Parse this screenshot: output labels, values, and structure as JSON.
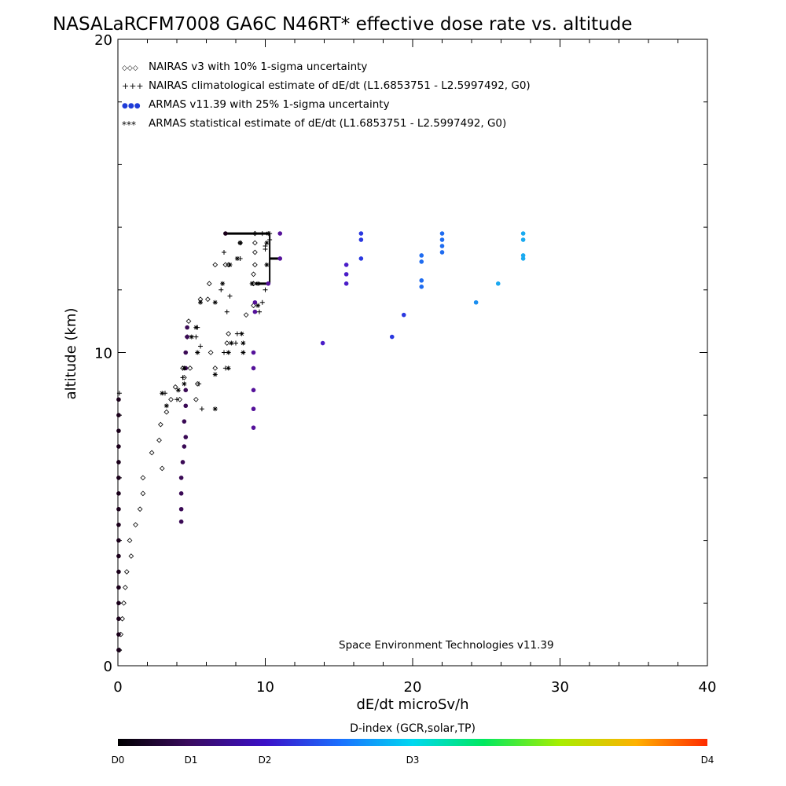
{
  "chart_data": {
    "type": "scatter",
    "title": "NASALaRCFM7008  GA6C N46RT* effective dose rate vs. altitude",
    "xlabel": "dE/dt microSv/h",
    "ylabel": "altitude (km)",
    "xlim": [
      0,
      40
    ],
    "ylim": [
      0,
      20
    ],
    "x_ticks": [
      "0",
      "10",
      "20",
      "30",
      "40"
    ],
    "y_ticks": [
      "0",
      "10",
      "20"
    ],
    "grid": false,
    "legend_position": "top-left",
    "legend": [
      {
        "symbol": "◇◇◇",
        "label": "NAIRAS v3 with 10% 1-sigma uncertainty"
      },
      {
        "symbol": "+++",
        "label": "NAIRAS climatological estimate of dE/dt (L1.6853751 - L2.5997492, G0)"
      },
      {
        "symbol": "●●●",
        "label": "ARMAS v11.39 with 25% 1-sigma uncertainty"
      },
      {
        "symbol": "***",
        "label": "ARMAS statistical estimate of dE/dt (L1.6853751 - L2.5997492, G0)"
      }
    ],
    "annotation": "Space Environment Technologies v11.39",
    "colorbar": {
      "title": "D-index (GCR,solar,TP)",
      "labels": [
        "D0",
        "D1",
        "D2",
        "D3",
        "D4"
      ]
    },
    "series": [
      {
        "name": "NAIRAS v3 with 10% 1-sigma uncertainty",
        "marker": "diamond",
        "points": [
          [
            0.1,
            0.5
          ],
          [
            0.2,
            1.0
          ],
          [
            0.3,
            1.5
          ],
          [
            0.4,
            2.0
          ],
          [
            0.5,
            2.5
          ],
          [
            0.6,
            3.0
          ],
          [
            0.9,
            3.5
          ],
          [
            0.8,
            4.0
          ],
          [
            1.2,
            4.5
          ],
          [
            1.5,
            5.0
          ],
          [
            1.7,
            5.5
          ],
          [
            1.7,
            6.0
          ],
          [
            3.0,
            6.3
          ],
          [
            2.3,
            6.8
          ],
          [
            2.8,
            7.2
          ],
          [
            2.9,
            7.7
          ],
          [
            3.3,
            8.1
          ],
          [
            3.6,
            8.5
          ],
          [
            3.9,
            8.9
          ],
          [
            4.4,
            9.5
          ],
          [
            4.2,
            8.5
          ],
          [
            4.5,
            9.2
          ],
          [
            5.3,
            8.5
          ],
          [
            5.4,
            9.0
          ],
          [
            4.9,
            9.5
          ],
          [
            6.3,
            10.0
          ],
          [
            6.6,
            9.5
          ],
          [
            4.7,
            10.5
          ],
          [
            4.8,
            11.0
          ],
          [
            5.6,
            11.7
          ],
          [
            6.1,
            11.7
          ],
          [
            6.2,
            12.2
          ],
          [
            6.6,
            12.8
          ],
          [
            7.3,
            12.8
          ],
          [
            8.3,
            13.5
          ],
          [
            7.4,
            10.3
          ],
          [
            7.5,
            10.6
          ],
          [
            8.7,
            11.2
          ],
          [
            9.2,
            11.5
          ],
          [
            9.2,
            12.2
          ],
          [
            9.2,
            12.5
          ],
          [
            9.3,
            12.8
          ],
          [
            9.3,
            13.2
          ],
          [
            9.3,
            13.5
          ],
          [
            9.3,
            13.8
          ],
          [
            7.5,
            12.8
          ]
        ]
      },
      {
        "name": "NAIRAS climatological estimate of dE/dt (L1.6853751 - L2.5997492, G0)",
        "marker": "plus",
        "points": [
          [
            0.1,
            8.7
          ],
          [
            3.2,
            8.7
          ],
          [
            4.0,
            8.5
          ],
          [
            4.4,
            9.2
          ],
          [
            5.5,
            9.0
          ],
          [
            5.7,
            8.2
          ],
          [
            7.3,
            9.5
          ],
          [
            7.2,
            10.0
          ],
          [
            8.0,
            10.3
          ],
          [
            8.1,
            10.6
          ],
          [
            5.3,
            10.5
          ],
          [
            5.4,
            10.8
          ],
          [
            5.6,
            10.2
          ],
          [
            7.4,
            11.3
          ],
          [
            7.6,
            11.8
          ],
          [
            9.6,
            11.3
          ],
          [
            9.8,
            11.6
          ],
          [
            7.0,
            12.0
          ],
          [
            8.3,
            13.0
          ],
          [
            7.2,
            13.2
          ],
          [
            10.0,
            12.0
          ],
          [
            10.0,
            13.3
          ],
          [
            10.3,
            13.6
          ],
          [
            10.3,
            13.8
          ],
          [
            9.8,
            13.8
          ],
          [
            10.0,
            13.4
          ]
        ]
      },
      {
        "name": "ARMAS v11.39 with 25% 1-sigma uncertainty",
        "marker": "dot",
        "colored_by": "D-index",
        "points": [
          {
            "x": 0.05,
            "y": 0.5,
            "c": "#1a001a"
          },
          {
            "x": 0.05,
            "y": 1.0,
            "c": "#1a001a"
          },
          {
            "x": 0.05,
            "y": 1.5,
            "c": "#1a001a"
          },
          {
            "x": 0.05,
            "y": 2.0,
            "c": "#1a001a"
          },
          {
            "x": 0.05,
            "y": 2.5,
            "c": "#1a001a"
          },
          {
            "x": 0.05,
            "y": 3.0,
            "c": "#1a001a"
          },
          {
            "x": 0.05,
            "y": 3.5,
            "c": "#1a001a"
          },
          {
            "x": 0.05,
            "y": 4.0,
            "c": "#1a001a"
          },
          {
            "x": 0.05,
            "y": 4.5,
            "c": "#1a001a"
          },
          {
            "x": 0.05,
            "y": 5.0,
            "c": "#1a001a"
          },
          {
            "x": 0.05,
            "y": 5.5,
            "c": "#1a001a"
          },
          {
            "x": 0.05,
            "y": 6.0,
            "c": "#1a001a"
          },
          {
            "x": 0.05,
            "y": 6.5,
            "c": "#1a001a"
          },
          {
            "x": 0.05,
            "y": 7.0,
            "c": "#1a001a"
          },
          {
            "x": 0.05,
            "y": 7.5,
            "c": "#1a001a"
          },
          {
            "x": 0.05,
            "y": 8.0,
            "c": "#1a001a"
          },
          {
            "x": 0.05,
            "y": 8.5,
            "c": "#1a001a"
          },
          {
            "x": 4.3,
            "y": 4.6,
            "c": "#3a0a55"
          },
          {
            "x": 4.3,
            "y": 5.0,
            "c": "#3a0a55"
          },
          {
            "x": 4.3,
            "y": 5.5,
            "c": "#3a0a55"
          },
          {
            "x": 4.3,
            "y": 6.0,
            "c": "#3a0a55"
          },
          {
            "x": 4.4,
            "y": 6.5,
            "c": "#3a0a55"
          },
          {
            "x": 4.5,
            "y": 7.0,
            "c": "#3a0a55"
          },
          {
            "x": 4.6,
            "y": 7.3,
            "c": "#3a0a55"
          },
          {
            "x": 4.5,
            "y": 7.8,
            "c": "#3a0a55"
          },
          {
            "x": 4.6,
            "y": 8.3,
            "c": "#3a0a55"
          },
          {
            "x": 4.6,
            "y": 8.8,
            "c": "#3a0a55"
          },
          {
            "x": 4.6,
            "y": 9.5,
            "c": "#3a0a55"
          },
          {
            "x": 4.6,
            "y": 10.0,
            "c": "#3a0a55"
          },
          {
            "x": 4.7,
            "y": 10.5,
            "c": "#3a0a55"
          },
          {
            "x": 4.7,
            "y": 10.8,
            "c": "#3a0a55"
          },
          {
            "x": 9.2,
            "y": 7.6,
            "c": "#55129a"
          },
          {
            "x": 9.2,
            "y": 8.2,
            "c": "#55129a"
          },
          {
            "x": 9.2,
            "y": 8.8,
            "c": "#55129a"
          },
          {
            "x": 9.2,
            "y": 9.5,
            "c": "#55129a"
          },
          {
            "x": 9.2,
            "y": 10.0,
            "c": "#55129a"
          },
          {
            "x": 9.3,
            "y": 11.3,
            "c": "#55129a"
          },
          {
            "x": 9.3,
            "y": 11.6,
            "c": "#55129a"
          },
          {
            "x": 10.2,
            "y": 12.2,
            "c": "#55129a"
          },
          {
            "x": 11.0,
            "y": 13.0,
            "c": "#55129a"
          },
          {
            "x": 11.0,
            "y": 13.8,
            "c": "#55129a"
          },
          {
            "x": 7.3,
            "y": 13.8,
            "c": "#1a001a"
          },
          {
            "x": 13.9,
            "y": 10.3,
            "c": "#4a1cc8"
          },
          {
            "x": 15.5,
            "y": 12.2,
            "c": "#4a1cc8"
          },
          {
            "x": 15.5,
            "y": 12.5,
            "c": "#4a1cc8"
          },
          {
            "x": 15.5,
            "y": 12.8,
            "c": "#4a1cc8"
          },
          {
            "x": 16.5,
            "y": 13.0,
            "c": "#2a38e0"
          },
          {
            "x": 16.5,
            "y": 13.6,
            "c": "#2a38e0"
          },
          {
            "x": 16.5,
            "y": 13.8,
            "c": "#2a38e0"
          },
          {
            "x": 18.6,
            "y": 10.5,
            "c": "#2a38e0"
          },
          {
            "x": 19.4,
            "y": 11.2,
            "c": "#2a38e0"
          },
          {
            "x": 20.6,
            "y": 12.1,
            "c": "#1f6cf0"
          },
          {
            "x": 20.6,
            "y": 12.3,
            "c": "#1f6cf0"
          },
          {
            "x": 20.6,
            "y": 12.9,
            "c": "#1f6cf0"
          },
          {
            "x": 20.6,
            "y": 13.1,
            "c": "#1f6cf0"
          },
          {
            "x": 22.0,
            "y": 13.2,
            "c": "#1f6cf0"
          },
          {
            "x": 22.0,
            "y": 13.4,
            "c": "#1f6cf0"
          },
          {
            "x": 22.0,
            "y": 13.6,
            "c": "#1f6cf0"
          },
          {
            "x": 22.0,
            "y": 13.8,
            "c": "#1f6cf0"
          },
          {
            "x": 24.3,
            "y": 11.6,
            "c": "#1a8ef0"
          },
          {
            "x": 25.8,
            "y": 12.2,
            "c": "#1aa8f0"
          },
          {
            "x": 27.5,
            "y": 13.0,
            "c": "#1aaaf0"
          },
          {
            "x": 27.5,
            "y": 13.1,
            "c": "#1aaaf0"
          },
          {
            "x": 27.5,
            "y": 13.6,
            "c": "#1aaaf0"
          },
          {
            "x": 27.5,
            "y": 13.8,
            "c": "#1aaaf0"
          }
        ]
      },
      {
        "name": "ARMAS statistical estimate of dE/dt (L1.6853751 - L2.5997492, G0)",
        "marker": "asterisk",
        "points": [
          [
            3.0,
            8.7
          ],
          [
            3.3,
            8.3
          ],
          [
            4.1,
            8.8
          ],
          [
            4.5,
            9.0
          ],
          [
            4.5,
            9.5
          ],
          [
            6.6,
            8.2
          ],
          [
            6.6,
            9.3
          ],
          [
            7.5,
            9.5
          ],
          [
            7.5,
            10.0
          ],
          [
            7.7,
            10.3
          ],
          [
            8.5,
            10.0
          ],
          [
            8.4,
            10.6
          ],
          [
            8.5,
            10.3
          ],
          [
            5.3,
            10.8
          ],
          [
            5.0,
            10.5
          ],
          [
            5.4,
            10.0
          ],
          [
            5.6,
            11.6
          ],
          [
            6.6,
            11.6
          ],
          [
            7.1,
            12.2
          ],
          [
            7.6,
            12.8
          ],
          [
            8.1,
            13.0
          ],
          [
            8.3,
            13.5
          ],
          [
            9.1,
            12.2
          ],
          [
            10.1,
            12.8
          ],
          [
            10.1,
            13.5
          ],
          [
            10.2,
            13.8
          ],
          [
            9.5,
            11.5
          ],
          [
            9.5,
            12.2
          ]
        ]
      }
    ],
    "segments": [
      {
        "x0": 7.4,
        "x1": 10.3,
        "y": 13.8
      },
      {
        "x0": 10.3,
        "x1": 11.0,
        "y": 13.0
      },
      {
        "x0": 9.3,
        "x1": 10.3,
        "y": 12.2
      },
      {
        "x0": 10.3,
        "x1": 10.3,
        "y0": 12.2,
        "y1": 13.8
      }
    ]
  }
}
